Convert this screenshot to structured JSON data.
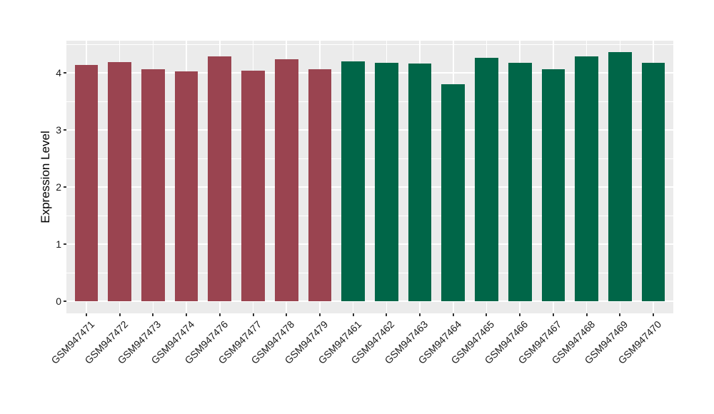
{
  "chart_data": {
    "type": "bar",
    "title": "",
    "xlabel": "",
    "ylabel": "Expression Level",
    "ylim": [
      -0.21,
      4.56
    ],
    "yticks": [
      0,
      1,
      2,
      3,
      4
    ],
    "grid": "on",
    "legend": "none",
    "panel_bg": "#EBEBEB",
    "grid_color": "#FFFFFF",
    "tick_color": "#333333",
    "groups": {
      "groupA": "#9A4450",
      "groupB": "#006648"
    },
    "bars": [
      {
        "label": "GSM947471",
        "value": 4.14,
        "group": "groupA"
      },
      {
        "label": "GSM947472",
        "value": 4.19,
        "group": "groupA"
      },
      {
        "label": "GSM947473",
        "value": 4.06,
        "group": "groupA"
      },
      {
        "label": "GSM947474",
        "value": 4.03,
        "group": "groupA"
      },
      {
        "label": "GSM947476",
        "value": 4.29,
        "group": "groupA"
      },
      {
        "label": "GSM947477",
        "value": 4.04,
        "group": "groupA"
      },
      {
        "label": "GSM947478",
        "value": 4.24,
        "group": "groupA"
      },
      {
        "label": "GSM947479",
        "value": 4.06,
        "group": "groupA"
      },
      {
        "label": "GSM947461",
        "value": 4.2,
        "group": "groupB"
      },
      {
        "label": "GSM947462",
        "value": 4.18,
        "group": "groupB"
      },
      {
        "label": "GSM947463",
        "value": 4.16,
        "group": "groupB"
      },
      {
        "label": "GSM947464",
        "value": 3.8,
        "group": "groupB"
      },
      {
        "label": "GSM947465",
        "value": 4.26,
        "group": "groupB"
      },
      {
        "label": "GSM947466",
        "value": 4.18,
        "group": "groupB"
      },
      {
        "label": "GSM947467",
        "value": 4.06,
        "group": "groupB"
      },
      {
        "label": "GSM947468",
        "value": 4.29,
        "group": "groupB"
      },
      {
        "label": "GSM947469",
        "value": 4.36,
        "group": "groupB"
      },
      {
        "label": "GSM947470",
        "value": 4.18,
        "group": "groupB"
      }
    ]
  }
}
